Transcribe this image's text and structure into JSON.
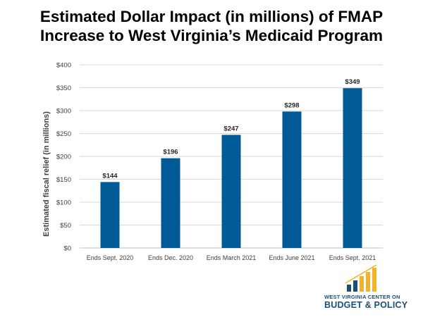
{
  "title_line1": "Estimated Dollar Impact (in millions) of FMAP",
  "title_line2": "Increase to West Virginia’s Medicaid Program",
  "colors": {
    "bar": "#005a95",
    "grid": "#d9d9d9",
    "axis_text": "#404040",
    "logo_blue": "#1b4f7a",
    "logo_gold": "#f2b32a"
  },
  "logo": {
    "line1": "WEST VIRGINIA CENTER ON",
    "line2": "BUDGET & POLICY",
    "icon": "bar-graph-logo-icon"
  },
  "chart_data": {
    "type": "bar",
    "title": "Estimated Dollar Impact (in millions) of FMAP Increase to West Virginia’s Medicaid Program",
    "ylabel": "Estimated fiscal relief (in millions)",
    "xlabel": "",
    "categories": [
      "Ends Sept. 2020",
      "Ends Dec. 2020",
      "Ends March 2021",
      "Ends June 2021",
      "Ends Sept. 2021"
    ],
    "values": [
      144,
      196,
      247,
      298,
      349
    ],
    "data_labels": [
      "$144",
      "$196",
      "$247",
      "$298",
      "$349"
    ],
    "ylim": [
      0,
      400
    ],
    "yticks": [
      0,
      50,
      100,
      150,
      200,
      250,
      300,
      350,
      400
    ],
    "ytick_labels": [
      "$0",
      "$50",
      "$100",
      "$150",
      "$200",
      "$250",
      "$300",
      "$350",
      "$400"
    ],
    "grid": true,
    "legend": "none"
  }
}
